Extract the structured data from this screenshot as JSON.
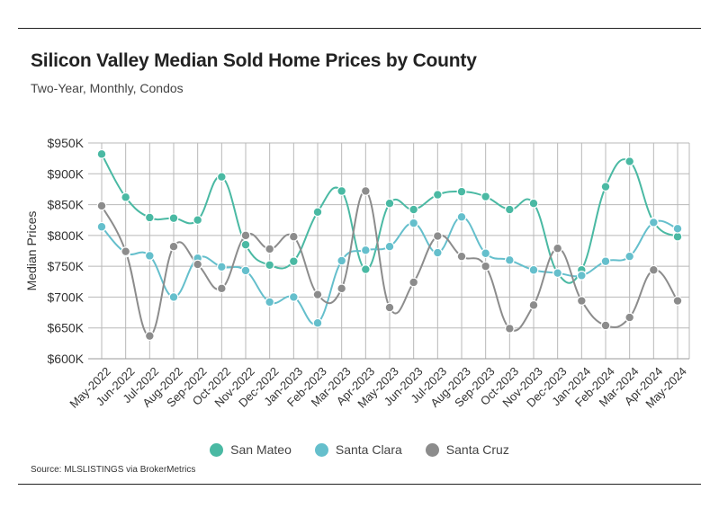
{
  "header": {
    "title": "Silicon Valley Median Sold Home Prices by County",
    "subtitle": "Two-Year, Monthly, Condos"
  },
  "source": "Source:  MLSLISTINGS via BrokerMetrics",
  "colors": {
    "san_mateo": "#4ab9a3",
    "santa_clara": "#65bfcc",
    "santa_cruz": "#8c8c8c",
    "grid": "#b8b8b8"
  },
  "chart_data": {
    "type": "line",
    "title": "Silicon Valley Median Sold Home Prices by County",
    "subtitle": "Two-Year, Monthly, Condos",
    "xlabel": "",
    "ylabel": "Median Prices",
    "ylim": [
      600000,
      950000
    ],
    "y_ticks": [
      600000,
      650000,
      700000,
      750000,
      800000,
      850000,
      900000,
      950000
    ],
    "y_tick_labels": [
      "$600K",
      "$650K",
      "$700K",
      "$750K",
      "$800K",
      "$850K",
      "$900K",
      "$950K"
    ],
    "grid": true,
    "legend_position": "bottom-center",
    "categories": [
      "May-2022",
      "Jun-2022",
      "Jul-2022",
      "Aug-2022",
      "Sep-2022",
      "Oct-2022",
      "Nov-2022",
      "Dec-2022",
      "Jan-2023",
      "Feb-2023",
      "Mar-2023",
      "Apr-2023",
      "May-2023",
      "Jun-2023",
      "Jul-2023",
      "Aug-2023",
      "Sep-2023",
      "Oct-2023",
      "Nov-2023",
      "Dec-2023",
      "Jan-2024",
      "Feb-2024",
      "Mar-2024",
      "Apr-2024",
      "May-2024"
    ],
    "series": [
      {
        "name": "San Mateo",
        "values": [
          932000,
          862000,
          829000,
          828000,
          825000,
          895000,
          785000,
          752000,
          758000,
          838000,
          872000,
          745000,
          852000,
          842000,
          866000,
          871000,
          863000,
          842000,
          852000,
          739000,
          744000,
          879000,
          920000,
          822000,
          798000
        ]
      },
      {
        "name": "Santa Clara",
        "values": [
          814000,
          772000,
          767000,
          700000,
          763000,
          749000,
          743000,
          692000,
          700000,
          658000,
          759000,
          776000,
          782000,
          820000,
          772000,
          830000,
          771000,
          760000,
          744000,
          739000,
          735000,
          758000,
          766000,
          821000,
          811000
        ]
      },
      {
        "name": "Santa Cruz",
        "values": [
          848000,
          774000,
          637000,
          782000,
          753000,
          714000,
          800000,
          778000,
          798000,
          704000,
          714000,
          872000,
          683000,
          724000,
          799000,
          766000,
          750000,
          649000,
          687000,
          779000,
          694000,
          654000,
          667000,
          744000,
          694000
        ]
      }
    ]
  }
}
